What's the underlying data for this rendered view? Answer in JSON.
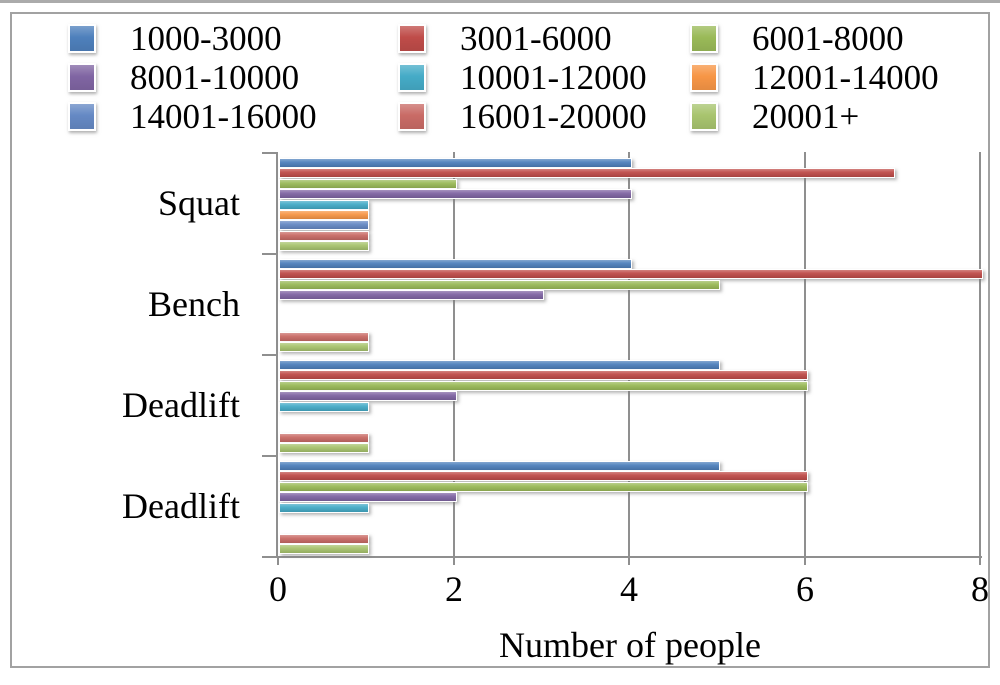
{
  "chart_data": {
    "type": "bar",
    "orientation": "horizontal",
    "title": "",
    "xlabel": "Number of people",
    "ylabel": "",
    "xlim": [
      0,
      8
    ],
    "x_ticks": [
      "0",
      "2",
      "4",
      "6",
      "8"
    ],
    "grid": true,
    "legend_position": "top",
    "legend_columns": 3,
    "categories": [
      "Squat",
      "Bench",
      "Deadlift",
      "Deadlift"
    ],
    "series": [
      {
        "name": "1000-3000",
        "color": "#4E80BC",
        "values": [
          4,
          4,
          5,
          5
        ]
      },
      {
        "name": "3001-6000",
        "color": "#BF4C49",
        "values": [
          7,
          8,
          6,
          6
        ]
      },
      {
        "name": "6001-8000",
        "color": "#9ABA58",
        "values": [
          2,
          5,
          6,
          6
        ]
      },
      {
        "name": "8001-10000",
        "color": "#8065A3",
        "values": [
          4,
          3,
          2,
          2
        ]
      },
      {
        "name": "10001-12000",
        "color": "#45ABC7",
        "values": [
          1,
          0,
          1,
          1
        ]
      },
      {
        "name": "12001-14000",
        "color": "#F79646",
        "values": [
          1,
          0,
          0,
          0
        ]
      },
      {
        "name": "14001-16000",
        "color": "#6589C4",
        "values": [
          1,
          0,
          0,
          0
        ]
      },
      {
        "name": "16001-20000",
        "color": "#C96B66",
        "values": [
          1,
          1,
          1,
          1
        ]
      },
      {
        "name": "20001+",
        "color": "#A8C46E",
        "values": [
          1,
          1,
          1,
          1
        ]
      }
    ]
  }
}
